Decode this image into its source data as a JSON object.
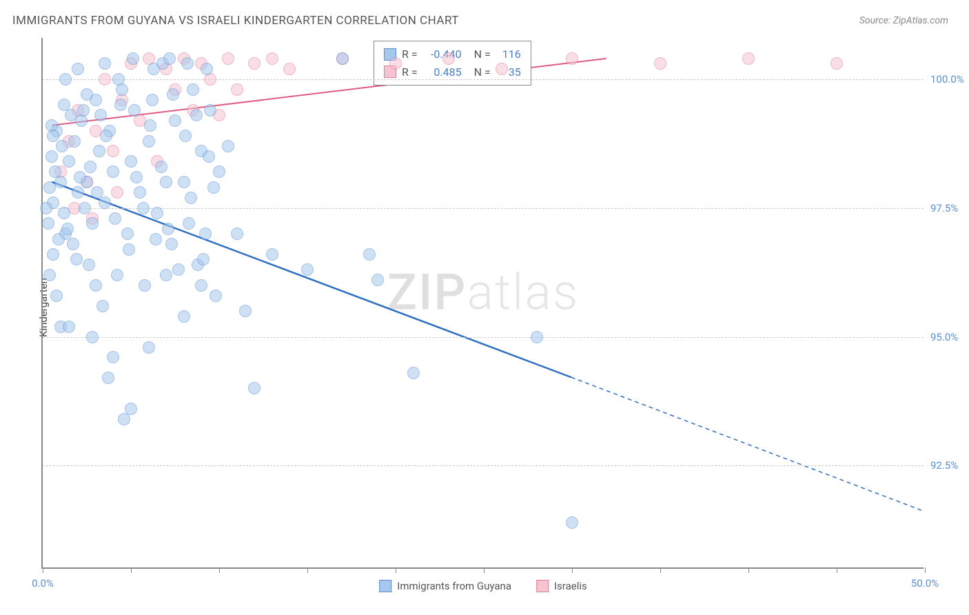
{
  "title": "IMMIGRANTS FROM GUYANA VS ISRAELI KINDERGARTEN CORRELATION CHART",
  "source": "Source: ZipAtlas.com",
  "ylabel": "Kindergarten",
  "watermark_zip": "ZIP",
  "watermark_atlas": "atlas",
  "chart": {
    "type": "scatter",
    "background_color": "#ffffff",
    "grid_color": "#cccccc",
    "axis_color": "#888888",
    "xlim": [
      0,
      50
    ],
    "ylim": [
      90.5,
      100.8
    ],
    "xticks": [
      0,
      5,
      10,
      15,
      20,
      25,
      30,
      35,
      40,
      45,
      50
    ],
    "xtick_labels": {
      "0": "0.0%",
      "50": "50.0%"
    },
    "ygrid": [
      92.5,
      95.0,
      97.5,
      100.0
    ],
    "ytick_labels": {
      "92.5": "92.5%",
      "95.0": "95.0%",
      "97.5": "97.5%",
      "100.0": "100.0%"
    },
    "marker_size": 18,
    "label_fontsize": 15,
    "title_fontsize": 17,
    "tick_color": "#5a8fd6"
  },
  "series": {
    "blue": {
      "label": "Immigrants from Guyana",
      "fill_color": "#a6c8ec",
      "stroke_color": "#5a8fd6",
      "R": "-0.440",
      "N": "116",
      "trend": {
        "x1": 0.5,
        "y1": 98.0,
        "x2": 30,
        "y2": 94.2,
        "x2_dash": 50,
        "y2_dash": 91.6,
        "line_width": 2.5
      },
      "points": [
        [
          0.4,
          97.9
        ],
        [
          0.6,
          97.6
        ],
        [
          0.7,
          98.2
        ],
        [
          0.5,
          98.5
        ],
        [
          0.3,
          97.2
        ],
        [
          1.0,
          98.0
        ],
        [
          1.2,
          97.4
        ],
        [
          0.8,
          99.0
        ],
        [
          1.5,
          98.4
        ],
        [
          1.3,
          97.0
        ],
        [
          0.6,
          96.6
        ],
        [
          1.8,
          98.8
        ],
        [
          2.0,
          97.8
        ],
        [
          2.2,
          99.2
        ],
        [
          1.7,
          96.8
        ],
        [
          2.5,
          98.0
        ],
        [
          2.8,
          97.2
        ],
        [
          3.0,
          99.6
        ],
        [
          3.2,
          98.6
        ],
        [
          2.6,
          96.4
        ],
        [
          3.5,
          97.6
        ],
        [
          3.8,
          99.0
        ],
        [
          4.0,
          98.2
        ],
        [
          4.2,
          96.2
        ],
        [
          1.0,
          95.2
        ],
        [
          4.5,
          99.8
        ],
        [
          4.8,
          97.0
        ],
        [
          5.0,
          98.4
        ],
        [
          5.2,
          99.4
        ],
        [
          3.4,
          95.6
        ],
        [
          5.5,
          97.8
        ],
        [
          5.8,
          96.0
        ],
        [
          6.0,
          98.8
        ],
        [
          6.2,
          99.6
        ],
        [
          6.5,
          97.4
        ],
        [
          6.8,
          100.3
        ],
        [
          7.0,
          98.0
        ],
        [
          7.3,
          96.8
        ],
        [
          7.5,
          99.2
        ],
        [
          4.6,
          93.4
        ],
        [
          8.0,
          98.0
        ],
        [
          8.3,
          97.2
        ],
        [
          8.5,
          99.8
        ],
        [
          8.8,
          96.4
        ],
        [
          9.0,
          98.6
        ],
        [
          9.2,
          97.0
        ],
        [
          9.5,
          99.4
        ],
        [
          9.8,
          95.8
        ],
        [
          10.0,
          98.2
        ],
        [
          5.0,
          93.6
        ],
        [
          2.3,
          99.4
        ],
        [
          2.7,
          98.3
        ],
        [
          3.1,
          97.8
        ],
        [
          3.6,
          98.9
        ],
        [
          4.1,
          97.3
        ],
        [
          4.4,
          99.5
        ],
        [
          4.9,
          96.7
        ],
        [
          5.3,
          98.1
        ],
        [
          5.7,
          97.5
        ],
        [
          6.1,
          99.1
        ],
        [
          6.4,
          96.9
        ],
        [
          6.7,
          98.3
        ],
        [
          7.1,
          97.1
        ],
        [
          7.4,
          99.7
        ],
        [
          7.7,
          96.3
        ],
        [
          8.1,
          98.9
        ],
        [
          8.4,
          97.7
        ],
        [
          8.7,
          99.3
        ],
        [
          9.1,
          96.5
        ],
        [
          9.4,
          98.5
        ],
        [
          9.7,
          97.9
        ],
        [
          0.9,
          96.9
        ],
        [
          1.1,
          98.7
        ],
        [
          1.4,
          97.1
        ],
        [
          1.6,
          99.3
        ],
        [
          1.9,
          96.5
        ],
        [
          2.1,
          98.1
        ],
        [
          2.4,
          97.5
        ],
        [
          0.2,
          97.5
        ],
        [
          0.5,
          99.1
        ],
        [
          4.0,
          94.6
        ],
        [
          6.0,
          94.8
        ],
        [
          8.0,
          95.4
        ],
        [
          3.0,
          96.0
        ],
        [
          7.0,
          96.2
        ],
        [
          9.0,
          96.0
        ],
        [
          11.0,
          97.0
        ],
        [
          10.5,
          98.7
        ],
        [
          11.5,
          95.5
        ],
        [
          12.0,
          94.0
        ],
        [
          13.0,
          96.6
        ],
        [
          15.0,
          96.3
        ],
        [
          17.0,
          100.4
        ],
        [
          18.5,
          96.6
        ],
        [
          19.0,
          96.1
        ],
        [
          21.0,
          94.3
        ],
        [
          28.0,
          95.0
        ],
        [
          30.0,
          91.4
        ],
        [
          1.3,
          100.0
        ],
        [
          2.0,
          100.2
        ],
        [
          3.5,
          100.3
        ],
        [
          4.3,
          100.0
        ],
        [
          5.1,
          100.4
        ],
        [
          6.3,
          100.2
        ],
        [
          7.2,
          100.4
        ],
        [
          8.2,
          100.3
        ],
        [
          9.3,
          100.2
        ],
        [
          0.8,
          95.8
        ],
        [
          1.5,
          95.2
        ],
        [
          2.8,
          95.0
        ],
        [
          3.7,
          94.2
        ],
        [
          0.4,
          96.2
        ],
        [
          0.6,
          98.9
        ],
        [
          1.2,
          99.5
        ],
        [
          2.5,
          99.7
        ],
        [
          3.3,
          99.3
        ]
      ]
    },
    "pink": {
      "label": "Israelis",
      "fill_color": "#f5c4d0",
      "stroke_color": "#e47a9a",
      "R": "0.485",
      "N": "35",
      "trend": {
        "x1": 0.5,
        "y1": 99.1,
        "x2": 32,
        "y2": 100.4,
        "line_width": 2
      },
      "points": [
        [
          1.0,
          98.2
        ],
        [
          1.5,
          98.8
        ],
        [
          2.0,
          99.4
        ],
        [
          2.5,
          98.0
        ],
        [
          3.0,
          99.0
        ],
        [
          3.5,
          100.0
        ],
        [
          4.0,
          98.6
        ],
        [
          4.5,
          99.6
        ],
        [
          5.0,
          100.3
        ],
        [
          5.5,
          99.2
        ],
        [
          6.0,
          100.4
        ],
        [
          6.5,
          98.4
        ],
        [
          7.0,
          100.2
        ],
        [
          7.5,
          99.8
        ],
        [
          8.0,
          100.4
        ],
        [
          8.5,
          99.4
        ],
        [
          9.0,
          100.3
        ],
        [
          9.5,
          100.0
        ],
        [
          10.0,
          99.3
        ],
        [
          10.5,
          100.4
        ],
        [
          11.0,
          99.8
        ],
        [
          12.0,
          100.3
        ],
        [
          13.0,
          100.4
        ],
        [
          14.0,
          100.2
        ],
        [
          17.0,
          100.4
        ],
        [
          20.0,
          100.3
        ],
        [
          23.0,
          100.4
        ],
        [
          26.0,
          100.2
        ],
        [
          30.0,
          100.4
        ],
        [
          35.0,
          100.3
        ],
        [
          40.0,
          100.4
        ],
        [
          45.0,
          100.3
        ],
        [
          1.8,
          97.5
        ],
        [
          2.8,
          97.3
        ],
        [
          4.2,
          97.8
        ]
      ]
    }
  },
  "bottom_legend": {
    "item1": "Immigrants from Guyana",
    "item2": "Israelis"
  },
  "stats_box": {
    "R_label": "R =",
    "N_label": "N ="
  }
}
